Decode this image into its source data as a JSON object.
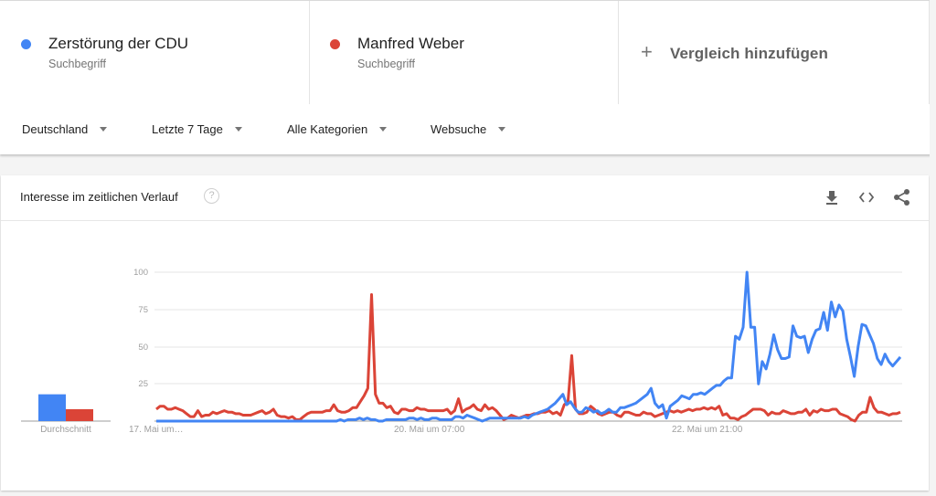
{
  "terms": [
    {
      "name": "Zerstörung der CDU",
      "type": "Suchbegriff",
      "color": "#4285f4"
    },
    {
      "name": "Manfred Weber",
      "type": "Suchbegriff",
      "color": "#db4437"
    }
  ],
  "add_comparison": {
    "icon": "plus-icon",
    "label": "Vergleich hinzufügen"
  },
  "filters": [
    {
      "label": "Deutschland"
    },
    {
      "label": "Letzte 7 Tage"
    },
    {
      "label": "Alle Kategorien"
    },
    {
      "label": "Websuche"
    }
  ],
  "card": {
    "title": "Interesse im zeitlichen Verlauf",
    "help_icon": "?",
    "actions": [
      "download-icon",
      "embed-code-icon",
      "share-icon"
    ]
  },
  "chart_data": {
    "type": "line",
    "title": "Interesse im zeitlichen Verlauf",
    "xlabel": "",
    "ylabel": "",
    "ylim": [
      0,
      100
    ],
    "yticks": [
      25,
      50,
      75,
      100
    ],
    "grid": true,
    "x_tick_labels": [
      "17. Mai um…",
      "20. Mai um 07:00",
      "22. Mai um 21:00"
    ],
    "average_label": "Durchschnitt",
    "averages": [
      {
        "name": "Zerstörung der CDU",
        "value": 18,
        "color": "#4285f4"
      },
      {
        "name": "Manfred Weber",
        "value": 8,
        "color": "#db4437"
      }
    ],
    "series": [
      {
        "name": "Zerstörung der CDU",
        "color": "#4285f4",
        "values": [
          0,
          0,
          0,
          0,
          0,
          0,
          0,
          0,
          0,
          0,
          0,
          0,
          0,
          0,
          0,
          0,
          0,
          0,
          0,
          0,
          0,
          0,
          0,
          0,
          0,
          0,
          0,
          0,
          0,
          0,
          0,
          0,
          0,
          0,
          0,
          0,
          0,
          0,
          0,
          0,
          0,
          0,
          0,
          0,
          0,
          0,
          0,
          0,
          1,
          0,
          1,
          1,
          1,
          2,
          1,
          2,
          1,
          1,
          0,
          0,
          1,
          1,
          1,
          1,
          1,
          1,
          2,
          2,
          1,
          2,
          1,
          1,
          2,
          2,
          1,
          1,
          1,
          1,
          3,
          3,
          2,
          4,
          3,
          2,
          1,
          0,
          1,
          2,
          2,
          2,
          2,
          2,
          2,
          2,
          2,
          2,
          3,
          2,
          4,
          5,
          6,
          7,
          8,
          10,
          12,
          15,
          18,
          11,
          13,
          9,
          6,
          6,
          9,
          8,
          6,
          7,
          5,
          6,
          8,
          6,
          6,
          9,
          9,
          10,
          11,
          12,
          14,
          16,
          18,
          22,
          12,
          9,
          11,
          2,
          10,
          12,
          14,
          17,
          16,
          15,
          18,
          18,
          19,
          18,
          20,
          22,
          24,
          24,
          27,
          29,
          29,
          57,
          55,
          63,
          100,
          63,
          63,
          25,
          40,
          35,
          45,
          58,
          48,
          42,
          42,
          43,
          64,
          57,
          56,
          57,
          46,
          55,
          61,
          62,
          73,
          61,
          80,
          70,
          78,
          74,
          55,
          43,
          30,
          50,
          65,
          64,
          58,
          52,
          42,
          38,
          45,
          40,
          37,
          40,
          43
        ]
      },
      {
        "name": "Manfred Weber",
        "color": "#db4437",
        "values": [
          8,
          10,
          10,
          8,
          8,
          9,
          8,
          7,
          5,
          3,
          3,
          7,
          3,
          4,
          4,
          6,
          5,
          6,
          7,
          6,
          6,
          5,
          5,
          4,
          4,
          4,
          5,
          6,
          7,
          5,
          6,
          8,
          4,
          3,
          3,
          2,
          3,
          1,
          1,
          3,
          5,
          6,
          6,
          6,
          6,
          7,
          7,
          11,
          7,
          6,
          6,
          7,
          9,
          9,
          13,
          17,
          22,
          85,
          18,
          12,
          12,
          9,
          10,
          6,
          5,
          8,
          8,
          7,
          7,
          9,
          8,
          8,
          7,
          7,
          7,
          7,
          7,
          8,
          5,
          7,
          15,
          6,
          8,
          9,
          11,
          8,
          7,
          11,
          8,
          9,
          7,
          4,
          1,
          2,
          4,
          3,
          2,
          3,
          4,
          4,
          5,
          5,
          6,
          6,
          7,
          5,
          6,
          4,
          11,
          13,
          44,
          8,
          5,
          5,
          6,
          10,
          8,
          5,
          4,
          5,
          6,
          6,
          4,
          3,
          6,
          6,
          5,
          4,
          4,
          6,
          5,
          5,
          3,
          4,
          5,
          6,
          7,
          6,
          7,
          6,
          7,
          8,
          7,
          8,
          8,
          9,
          8,
          9,
          8,
          10,
          4,
          5,
          2,
          2,
          1,
          3,
          4,
          6,
          8,
          8,
          8,
          7,
          4,
          6,
          5,
          5,
          7,
          6,
          5,
          5,
          6,
          6,
          8,
          4,
          7,
          6,
          8,
          7,
          7,
          8,
          8,
          5,
          4,
          3,
          1,
          0,
          4,
          6,
          6,
          16,
          9,
          6,
          6,
          5,
          4,
          5,
          5,
          6
        ]
      }
    ]
  }
}
